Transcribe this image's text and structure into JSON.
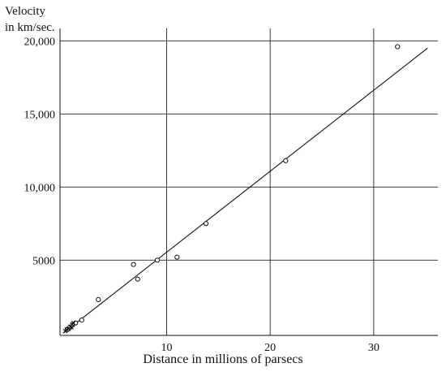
{
  "chart_data": {
    "type": "scatter",
    "title": "",
    "ylabel_lines": [
      "Velocity",
      "in km/sec."
    ],
    "xlabel": "Distance in millions of parsecs",
    "x_ticks": [
      {
        "value": 10,
        "label": "10"
      },
      {
        "value": 20,
        "label": "20"
      },
      {
        "value": 30,
        "label": "30"
      }
    ],
    "y_ticks": [
      {
        "value": 5000,
        "label": "5000"
      },
      {
        "value": 10000,
        "label": "10,000"
      },
      {
        "value": 15000,
        "label": "15,000"
      },
      {
        "value": 20000,
        "label": "20,000"
      }
    ],
    "xlim": [
      -0.3,
      36.2
    ],
    "ylim": [
      -150,
      20850
    ],
    "grid": true,
    "series": [
      {
        "marker": "open-circle",
        "points": [
          {
            "x": 32.3,
            "y": 19600
          },
          {
            "x": 21.5,
            "y": 11800
          },
          {
            "x": 13.8,
            "y": 7500
          },
          {
            "x": 11.0,
            "y": 5200
          },
          {
            "x": 9.1,
            "y": 5000
          },
          {
            "x": 6.8,
            "y": 4700
          },
          {
            "x": 7.2,
            "y": 3700
          },
          {
            "x": 3.4,
            "y": 2300
          },
          {
            "x": 1.8,
            "y": 900
          },
          {
            "x": 1.2,
            "y": 700
          },
          {
            "x": 0.9,
            "y": 550
          },
          {
            "x": 0.6,
            "y": 350
          },
          {
            "x": 0.4,
            "y": 250
          }
        ]
      },
      {
        "marker": "cross",
        "points": [
          {
            "x": 0.2,
            "y": 150
          },
          {
            "x": 0.35,
            "y": 250
          },
          {
            "x": 0.5,
            "y": 300
          },
          {
            "x": 0.7,
            "y": 450
          },
          {
            "x": 0.9,
            "y": 600
          },
          {
            "x": 1.0,
            "y": 700
          },
          {
            "x": 0.8,
            "y": 400
          }
        ]
      }
    ],
    "fit_line": {
      "from": {
        "x": 0,
        "y": 0
      },
      "to": {
        "x": 35.2,
        "y": 19500
      }
    }
  }
}
